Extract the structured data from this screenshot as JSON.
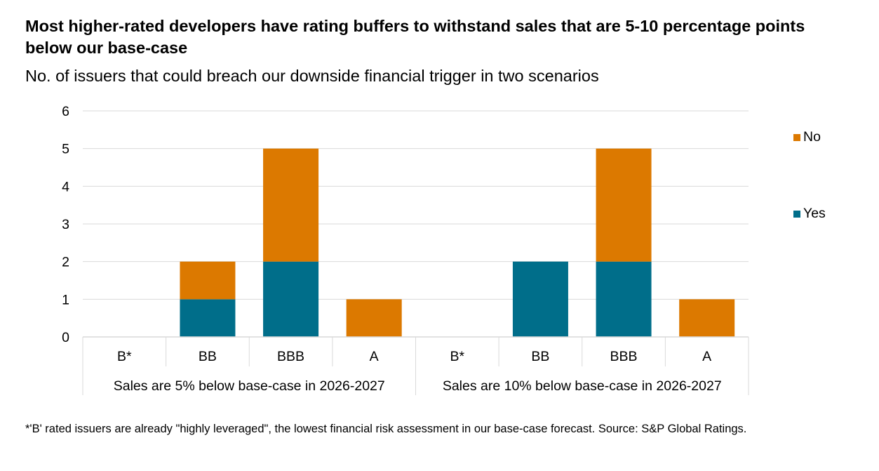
{
  "title": "Most higher-rated developers have rating buffers to withstand sales that are 5-10 percentage points below our base-case",
  "subtitle": "No. of issuers that could breach our downside financial trigger in two scenarios",
  "footnote": "*'B' rated issuers are already \"highly leveraged\", the lowest financial risk assessment in our base-case forecast. Source: S&P Global Ratings.",
  "chart_data": {
    "type": "bar",
    "stacked": true,
    "title": "Most higher-rated developers have rating buffers to withstand sales that are 5-10 percentage points below our base-case",
    "subtitle": "No. of issuers that could breach our downside financial trigger in two scenarios",
    "xlabel": "",
    "ylabel": "",
    "ylim": [
      0,
      6
    ],
    "yticks": [
      "0",
      "1",
      "2",
      "3",
      "4",
      "5",
      "6"
    ],
    "grid": true,
    "legend_position": "right",
    "groups": [
      {
        "label": "Sales are 5% below base-case in 2026-2027",
        "categories": [
          "B*",
          "BB",
          "BBB",
          "A"
        ]
      },
      {
        "label": "Sales are 10% below base-case in 2026-2027",
        "categories": [
          "B*",
          "BB",
          "BBB",
          "A"
        ]
      }
    ],
    "categories": [
      "B*",
      "BB",
      "BBB",
      "A",
      "B*",
      "BB",
      "BBB",
      "A"
    ],
    "series": [
      {
        "name": "Yes",
        "color": "#006E8A",
        "values": [
          0,
          1,
          2,
          0,
          0,
          2,
          2,
          0
        ]
      },
      {
        "name": "No",
        "color": "#DC7900",
        "values": [
          0,
          1,
          3,
          1,
          0,
          0,
          3,
          1
        ]
      }
    ],
    "legend_order": [
      "No",
      "Yes"
    ]
  }
}
